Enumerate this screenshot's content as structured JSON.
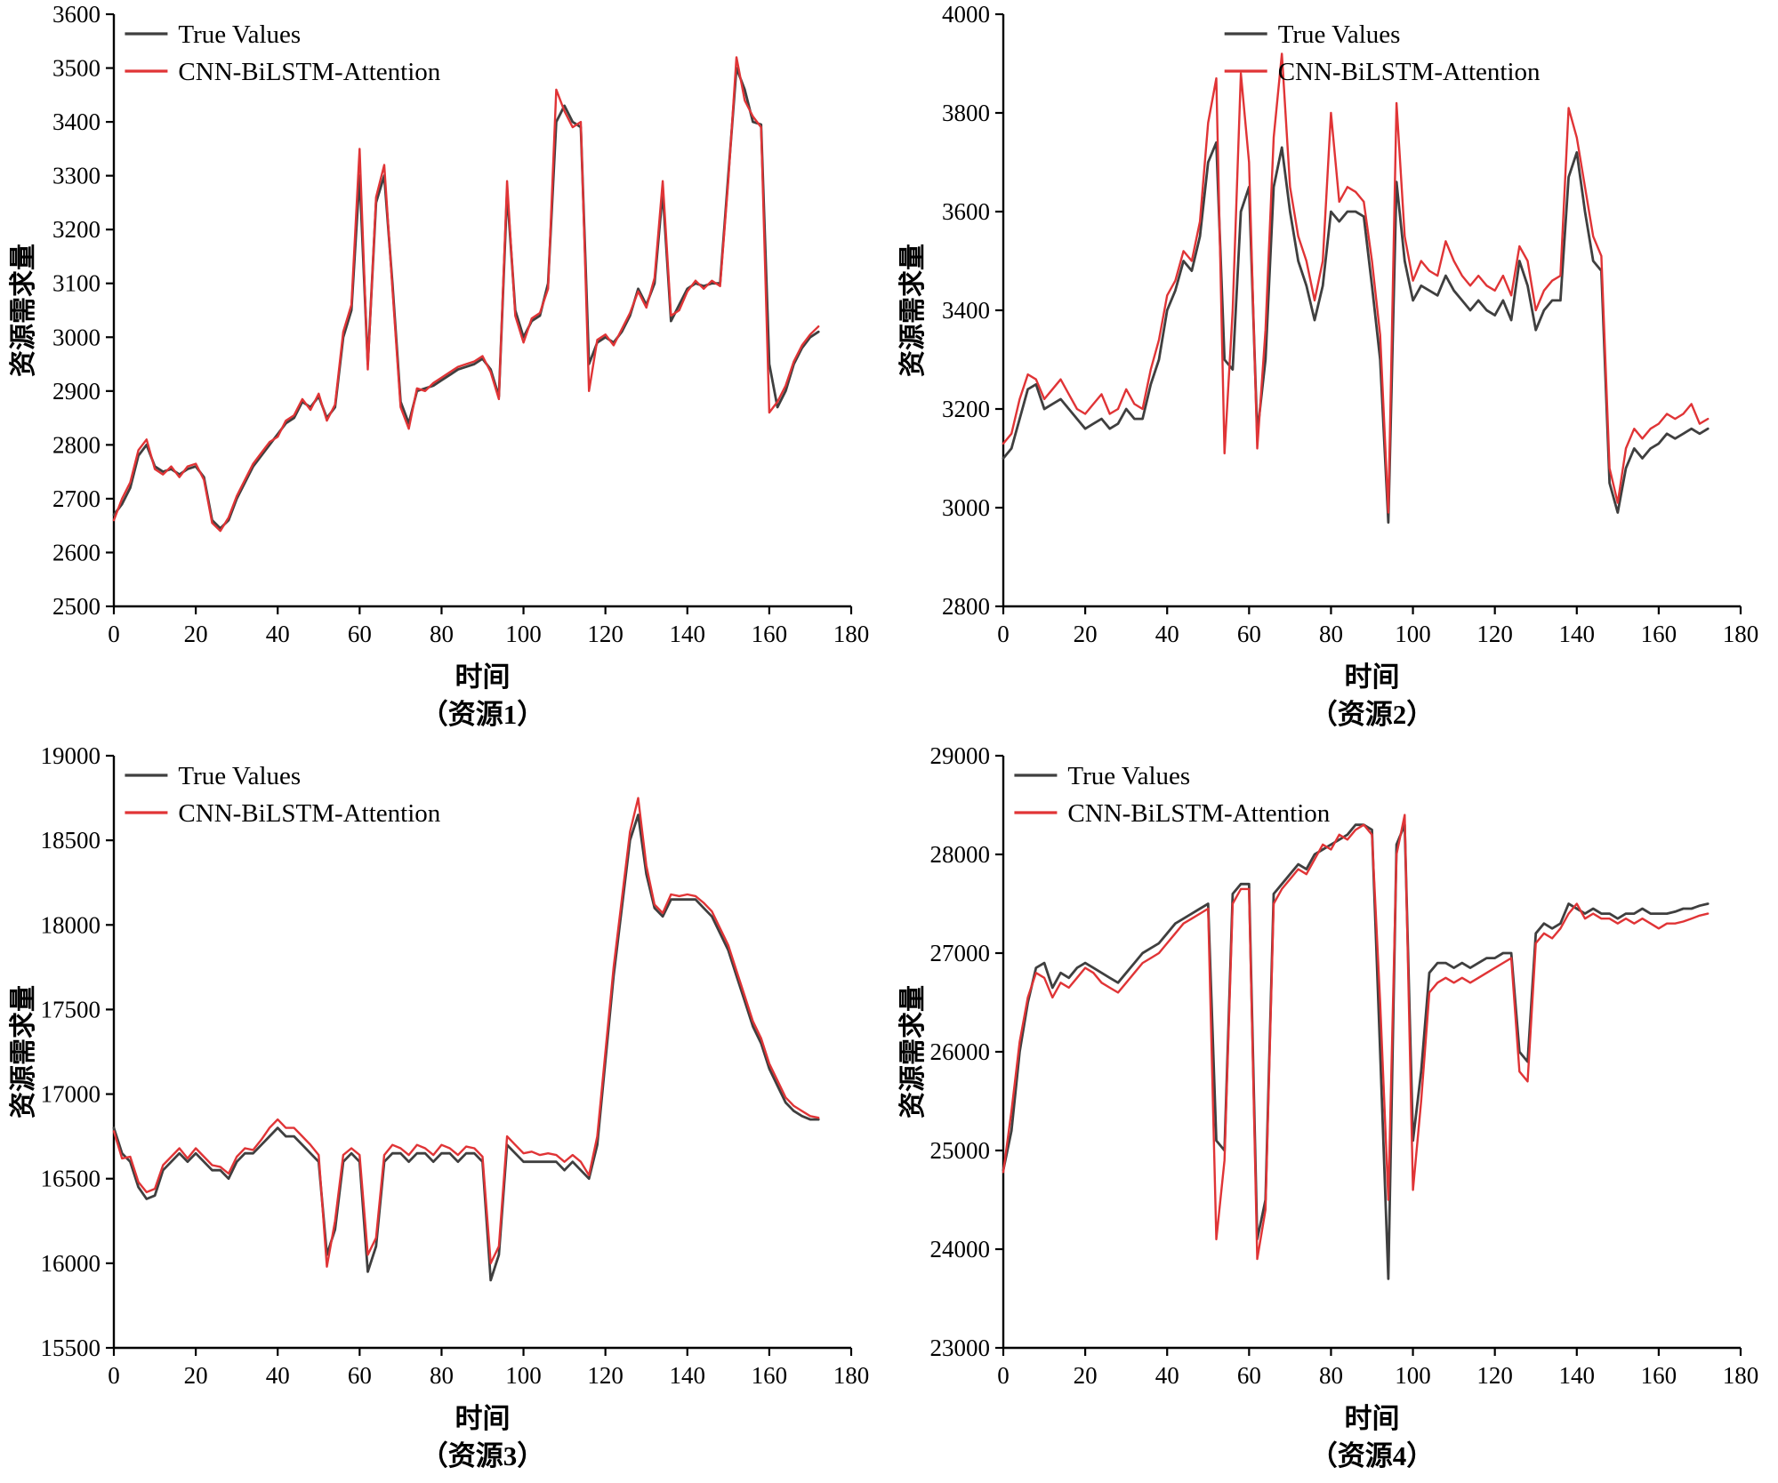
{
  "figure_title": "",
  "colors": {
    "true_values": "#3f3f3f",
    "prediction": "#e03436",
    "axis": "#000000"
  },
  "chart_data": [
    {
      "type": "line",
      "title": "",
      "xlabel": "时间",
      "sublabel": "（资源1）",
      "ylabel": "资源需求量",
      "xlim": [
        0,
        180
      ],
      "ylim": [
        2500,
        3600
      ],
      "xticks": [
        0,
        20,
        40,
        60,
        80,
        100,
        120,
        140,
        160,
        180
      ],
      "yticks": [
        2500,
        2600,
        2700,
        2800,
        2900,
        3000,
        3100,
        3200,
        3300,
        3400,
        3500,
        3600
      ],
      "x_start": 0,
      "x_step": 2,
      "grid": false,
      "legend_pos": "top-left",
      "legend_x": 0.015,
      "series": [
        {
          "name": "True Values",
          "color": "#3f3f3f",
          "values": [
            2670,
            2690,
            2720,
            2780,
            2800,
            2760,
            2750,
            2755,
            2745,
            2755,
            2760,
            2740,
            2660,
            2645,
            2660,
            2700,
            2730,
            2760,
            2780,
            2800,
            2820,
            2840,
            2850,
            2880,
            2870,
            2890,
            2850,
            2870,
            3000,
            3050,
            3300,
            2950,
            3250,
            3300,
            3100,
            2880,
            2840,
            2900,
            2905,
            2910,
            2920,
            2930,
            2940,
            2945,
            2950,
            2960,
            2940,
            2890,
            3270,
            3050,
            3000,
            3030,
            3040,
            3100,
            3400,
            3430,
            3400,
            3390,
            2950,
            2990,
            3000,
            2990,
            3010,
            3040,
            3090,
            3060,
            3100,
            3270,
            3030,
            3060,
            3090,
            3100,
            3095,
            3100,
            3100,
            3300,
            3500,
            3460,
            3400,
            3395,
            2950,
            2870,
            2900,
            2950,
            2980,
            3000,
            3010
          ]
        },
        {
          "name": "CNN-BiLSTM-Attention",
          "color": "#e03436",
          "values": [
            2660,
            2700,
            2730,
            2790,
            2810,
            2755,
            2745,
            2760,
            2740,
            2760,
            2765,
            2735,
            2655,
            2640,
            2665,
            2705,
            2735,
            2765,
            2785,
            2805,
            2815,
            2845,
            2855,
            2885,
            2865,
            2895,
            2845,
            2875,
            3010,
            3060,
            3350,
            2940,
            3260,
            3320,
            3090,
            2870,
            2830,
            2905,
            2900,
            2915,
            2925,
            2935,
            2945,
            2950,
            2955,
            2965,
            2935,
            2885,
            3290,
            3040,
            2990,
            3035,
            3045,
            3090,
            3460,
            3420,
            3390,
            3400,
            2900,
            2995,
            3005,
            2985,
            3015,
            3045,
            3085,
            3055,
            3110,
            3290,
            3040,
            3050,
            3085,
            3105,
            3090,
            3105,
            3095,
            3290,
            3520,
            3440,
            3410,
            3390,
            2860,
            2880,
            2910,
            2955,
            2985,
            3005,
            3020
          ]
        }
      ]
    },
    {
      "type": "line",
      "title": "",
      "xlabel": "时间",
      "sublabel": "（资源2）",
      "ylabel": "资源需求量",
      "xlim": [
        0,
        180
      ],
      "ylim": [
        2800,
        4000
      ],
      "xticks": [
        0,
        20,
        40,
        60,
        80,
        100,
        120,
        140,
        160,
        180
      ],
      "yticks": [
        2800,
        3000,
        3200,
        3400,
        3600,
        3800,
        4000
      ],
      "x_start": 0,
      "x_step": 2,
      "grid": false,
      "legend_pos": "top-center",
      "legend_x": 0.3,
      "series": [
        {
          "name": "True Values",
          "color": "#3f3f3f",
          "values": [
            3100,
            3120,
            3180,
            3240,
            3250,
            3200,
            3210,
            3220,
            3200,
            3180,
            3160,
            3170,
            3180,
            3160,
            3170,
            3200,
            3180,
            3180,
            3250,
            3300,
            3400,
            3440,
            3500,
            3480,
            3550,
            3700,
            3740,
            3300,
            3280,
            3600,
            3650,
            3150,
            3300,
            3650,
            3730,
            3600,
            3500,
            3450,
            3380,
            3450,
            3600,
            3580,
            3600,
            3600,
            3590,
            3450,
            3300,
            2970,
            3660,
            3500,
            3420,
            3450,
            3440,
            3430,
            3470,
            3440,
            3420,
            3400,
            3420,
            3400,
            3390,
            3420,
            3380,
            3500,
            3450,
            3360,
            3400,
            3420,
            3420,
            3670,
            3720,
            3600,
            3500,
            3480,
            3050,
            2990,
            3080,
            3120,
            3100,
            3120,
            3130,
            3150,
            3140,
            3150,
            3160,
            3150,
            3160
          ]
        },
        {
          "name": "CNN-BiLSTM-Attention",
          "color": "#e03436",
          "values": [
            3130,
            3150,
            3220,
            3270,
            3260,
            3220,
            3240,
            3260,
            3230,
            3200,
            3190,
            3210,
            3230,
            3190,
            3200,
            3240,
            3210,
            3200,
            3280,
            3340,
            3430,
            3460,
            3520,
            3500,
            3580,
            3780,
            3870,
            3110,
            3400,
            3880,
            3700,
            3120,
            3360,
            3750,
            3920,
            3650,
            3550,
            3500,
            3420,
            3500,
            3800,
            3620,
            3650,
            3640,
            3620,
            3500,
            3350,
            2990,
            3820,
            3550,
            3460,
            3500,
            3480,
            3470,
            3540,
            3500,
            3470,
            3450,
            3470,
            3450,
            3440,
            3470,
            3430,
            3530,
            3500,
            3400,
            3440,
            3460,
            3470,
            3810,
            3750,
            3650,
            3550,
            3510,
            3080,
            3010,
            3120,
            3160,
            3140,
            3160,
            3170,
            3190,
            3180,
            3190,
            3210,
            3170,
            3180
          ]
        }
      ]
    },
    {
      "type": "line",
      "title": "",
      "xlabel": "时间",
      "sublabel": "（资源3）",
      "ylabel": "资源需求量",
      "xlim": [
        0,
        180
      ],
      "ylim": [
        15500,
        19000
      ],
      "xticks": [
        0,
        20,
        40,
        60,
        80,
        100,
        120,
        140,
        160,
        180
      ],
      "yticks": [
        15500,
        16000,
        16500,
        17000,
        17500,
        18000,
        18500,
        19000
      ],
      "x_start": 0,
      "x_step": 2,
      "grid": false,
      "legend_pos": "top-left",
      "legend_x": 0.015,
      "series": [
        {
          "name": "True Values",
          "color": "#3f3f3f",
          "values": [
            16800,
            16650,
            16600,
            16450,
            16380,
            16400,
            16550,
            16600,
            16650,
            16600,
            16650,
            16600,
            16550,
            16550,
            16500,
            16600,
            16650,
            16650,
            16700,
            16750,
            16800,
            16750,
            16750,
            16700,
            16650,
            16600,
            16050,
            16200,
            16600,
            16650,
            16600,
            15950,
            16100,
            16600,
            16650,
            16650,
            16600,
            16650,
            16650,
            16600,
            16650,
            16650,
            16600,
            16650,
            16650,
            16600,
            15900,
            16050,
            16700,
            16650,
            16600,
            16600,
            16600,
            16600,
            16600,
            16550,
            16600,
            16550,
            16500,
            16700,
            17200,
            17700,
            18100,
            18500,
            18650,
            18300,
            18100,
            18050,
            18150,
            18150,
            18150,
            18150,
            18100,
            18050,
            17950,
            17850,
            17700,
            17550,
            17400,
            17300,
            17150,
            17050,
            16950,
            16900,
            16870,
            16850,
            16850
          ]
        },
        {
          "name": "CNN-BiLSTM-Attention",
          "color": "#e03436",
          "values": [
            16780,
            16620,
            16630,
            16480,
            16420,
            16440,
            16580,
            16630,
            16680,
            16620,
            16680,
            16630,
            16580,
            16570,
            16530,
            16630,
            16680,
            16670,
            16730,
            16800,
            16850,
            16800,
            16800,
            16750,
            16700,
            16640,
            15980,
            16250,
            16640,
            16680,
            16640,
            16050,
            16150,
            16640,
            16700,
            16680,
            16640,
            16700,
            16680,
            16640,
            16700,
            16680,
            16640,
            16690,
            16680,
            16630,
            16000,
            16100,
            16750,
            16700,
            16650,
            16660,
            16640,
            16650,
            16640,
            16600,
            16640,
            16600,
            16520,
            16750,
            17250,
            17750,
            18150,
            18550,
            18750,
            18350,
            18120,
            18070,
            18180,
            18170,
            18180,
            18170,
            18130,
            18080,
            17980,
            17880,
            17730,
            17580,
            17430,
            17330,
            17180,
            17080,
            16980,
            16930,
            16900,
            16870,
            16860
          ]
        }
      ]
    },
    {
      "type": "line",
      "title": "",
      "xlabel": "时间",
      "sublabel": "（资源4）",
      "ylabel": "资源需求量",
      "xlim": [
        0,
        180
      ],
      "ylim": [
        23000,
        29000
      ],
      "xticks": [
        0,
        20,
        40,
        60,
        80,
        100,
        120,
        140,
        160,
        180
      ],
      "yticks": [
        23000,
        24000,
        25000,
        26000,
        27000,
        28000,
        29000
      ],
      "x_start": 0,
      "x_step": 2,
      "grid": false,
      "legend_pos": "top-left",
      "legend_x": 0.015,
      "series": [
        {
          "name": "True Values",
          "color": "#3f3f3f",
          "values": [
            24800,
            25200,
            26000,
            26500,
            26850,
            26900,
            26650,
            26800,
            26750,
            26850,
            26900,
            26850,
            26800,
            26750,
            26700,
            26800,
            26900,
            27000,
            27050,
            27100,
            27200,
            27300,
            27350,
            27400,
            27450,
            27500,
            25100,
            25000,
            27600,
            27700,
            27700,
            24100,
            24500,
            27600,
            27700,
            27800,
            27900,
            27850,
            28000,
            28050,
            28100,
            28150,
            28200,
            28300,
            28300,
            28250,
            26000,
            23700,
            28100,
            28300,
            25100,
            25800,
            26800,
            26900,
            26900,
            26850,
            26900,
            26850,
            26900,
            26950,
            26950,
            27000,
            27000,
            26000,
            25900,
            27200,
            27300,
            27250,
            27300,
            27500,
            27450,
            27400,
            27450,
            27400,
            27400,
            27350,
            27400,
            27400,
            27450,
            27400,
            27400,
            27400,
            27420,
            27450,
            27450,
            27480,
            27500
          ]
        },
        {
          "name": "CNN-BiLSTM-Attention",
          "color": "#e03436",
          "values": [
            24780,
            25400,
            26100,
            26550,
            26800,
            26750,
            26550,
            26700,
            26650,
            26750,
            26850,
            26800,
            26700,
            26650,
            26600,
            26700,
            26800,
            26900,
            26950,
            27000,
            27100,
            27200,
            27300,
            27350,
            27400,
            27450,
            24100,
            24900,
            27500,
            27650,
            27650,
            23900,
            24400,
            27500,
            27650,
            27750,
            27850,
            27800,
            27950,
            28100,
            28050,
            28200,
            28150,
            28250,
            28300,
            28200,
            26500,
            24500,
            28000,
            28400,
            24600,
            25500,
            26600,
            26700,
            26750,
            26700,
            26750,
            26700,
            26750,
            26800,
            26850,
            26900,
            26950,
            25800,
            25700,
            27100,
            27200,
            27150,
            27250,
            27400,
            27500,
            27350,
            27400,
            27350,
            27350,
            27300,
            27350,
            27300,
            27350,
            27300,
            27250,
            27300,
            27300,
            27320,
            27350,
            27380,
            27400
          ]
        }
      ]
    }
  ],
  "legend_labels": [
    "True Values",
    "CNN-BiLSTM-Attention"
  ]
}
